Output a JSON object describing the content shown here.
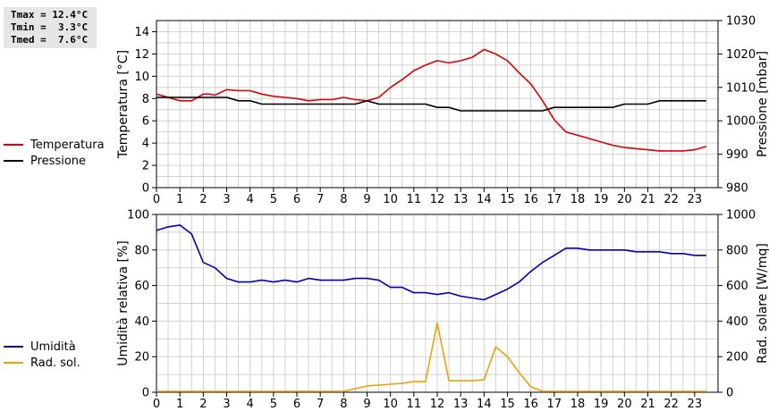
{
  "stats": {
    "tmax": "Tmax = 12.4°C",
    "tmin": "Tmin =  3.3°C",
    "tmed": "Tmed =  7.6°C"
  },
  "colors": {
    "temperature": "#dd0000",
    "pressure": "#000000",
    "humidity": "#0000bb",
    "radiation": "#f0a000",
    "grid": "#d0d0d0"
  },
  "chart_data": [
    {
      "type": "line",
      "xlim": [
        0,
        24
      ],
      "xticks": [
        0,
        1,
        2,
        3,
        4,
        5,
        6,
        7,
        8,
        9,
        10,
        11,
        12,
        13,
        14,
        15,
        16,
        17,
        18,
        19,
        20,
        21,
        22,
        23
      ],
      "ylabel": "Temperatura [°C]",
      "ylim": [
        0,
        15
      ],
      "yticks": [
        0,
        2,
        4,
        6,
        8,
        10,
        12,
        14
      ],
      "y2label": "Pressione [mbar]",
      "y2lim": [
        980,
        1030
      ],
      "y2ticks": [
        980,
        990,
        1000,
        1010,
        1020,
        1030
      ],
      "legend": [
        "Temperatura",
        "Pressione"
      ],
      "series": [
        {
          "name": "Temperatura",
          "axis": "left",
          "x": [
            0,
            0.5,
            1,
            1.5,
            2,
            2.25,
            2.5,
            3,
            3.5,
            4,
            4.5,
            5,
            5.5,
            6,
            6.5,
            7,
            7.5,
            8,
            8.5,
            9,
            9.5,
            10,
            10.5,
            11,
            11.5,
            12,
            12.5,
            13,
            13.5,
            14,
            14.5,
            15,
            15.5,
            16,
            16.5,
            17,
            17.5,
            18,
            18.5,
            19,
            19.5,
            20,
            20.5,
            21,
            21.5,
            22,
            22.5,
            23,
            23.5
          ],
          "y": [
            8.4,
            8.1,
            7.8,
            7.8,
            8.4,
            8.4,
            8.3,
            8.8,
            8.7,
            8.7,
            8.4,
            8.2,
            8.1,
            8.0,
            7.8,
            7.9,
            7.9,
            8.1,
            7.9,
            7.8,
            8.1,
            9.0,
            9.7,
            10.5,
            11.0,
            11.4,
            11.2,
            11.4,
            11.7,
            12.4,
            12.0,
            11.4,
            10.3,
            9.3,
            7.8,
            6.1,
            5.0,
            4.7,
            4.4,
            4.1,
            3.8,
            3.6,
            3.5,
            3.4,
            3.3,
            3.3,
            3.3,
            3.4,
            3.7
          ]
        },
        {
          "name": "Pressione",
          "axis": "right",
          "x": [
            0,
            1,
            2,
            3,
            3.5,
            4,
            4.5,
            5,
            6,
            7,
            8,
            8.5,
            9,
            9.5,
            10,
            11,
            11.5,
            12,
            12.5,
            13,
            14,
            15,
            16,
            16.5,
            17,
            17.5,
            18,
            19,
            19.5,
            20,
            21,
            21.5,
            22,
            23,
            23.5
          ],
          "y": [
            1007,
            1007,
            1007,
            1007,
            1006,
            1006,
            1005,
            1005,
            1005,
            1005,
            1005,
            1005,
            1006,
            1005,
            1005,
            1005,
            1005,
            1004,
            1004,
            1003,
            1003,
            1003,
            1003,
            1003,
            1004,
            1004,
            1004,
            1004,
            1004,
            1005,
            1005,
            1006,
            1006,
            1006,
            1006
          ]
        }
      ]
    },
    {
      "type": "line",
      "xlim": [
        0,
        24
      ],
      "xticks": [
        0,
        1,
        2,
        3,
        4,
        5,
        6,
        7,
        8,
        9,
        10,
        11,
        12,
        13,
        14,
        15,
        16,
        17,
        18,
        19,
        20,
        21,
        22,
        23
      ],
      "ylabel": "Umidità relativa [%]",
      "ylim": [
        0,
        100
      ],
      "yticks": [
        0,
        20,
        40,
        60,
        80,
        100
      ],
      "y2label": "Rad. solare [W/mq]",
      "y2lim": [
        0,
        1000
      ],
      "y2ticks": [
        0,
        200,
        400,
        600,
        800,
        1000
      ],
      "legend": [
        "Umidità",
        "Rad. sol."
      ],
      "series": [
        {
          "name": "Umidità",
          "axis": "left",
          "x": [
            0,
            0.5,
            1,
            1.5,
            2,
            2.5,
            3,
            3.5,
            4,
            4.5,
            5,
            5.5,
            6,
            6.5,
            7,
            7.5,
            8,
            8.5,
            9,
            9.5,
            10,
            10.5,
            11,
            11.5,
            12,
            12.5,
            13,
            13.5,
            14,
            14.5,
            15,
            15.5,
            16,
            16.5,
            17,
            17.5,
            18,
            18.5,
            19,
            19.5,
            20,
            20.5,
            21,
            21.5,
            22,
            22.5,
            23,
            23.5
          ],
          "y": [
            91,
            93,
            94,
            89,
            73,
            70,
            64,
            62,
            62,
            63,
            62,
            63,
            62,
            64,
            63,
            63,
            63,
            64,
            64,
            63,
            59,
            59,
            56,
            56,
            55,
            56,
            54,
            53,
            52,
            55,
            58,
            62,
            68,
            73,
            77,
            81,
            81,
            80,
            80,
            80,
            80,
            79,
            79,
            79,
            78,
            78,
            77,
            77
          ]
        },
        {
          "name": "Rad. sol.",
          "axis": "right",
          "x": [
            0,
            1,
            2,
            3,
            4,
            5,
            6,
            7,
            8,
            8.5,
            9,
            9.5,
            10,
            10.5,
            11,
            11.5,
            12,
            12.5,
            13,
            13.5,
            14,
            14.5,
            15,
            15.5,
            16,
            16.5,
            17,
            18,
            19,
            20,
            21,
            22,
            23,
            23.5
          ],
          "y": [
            5,
            5,
            5,
            5,
            5,
            5,
            5,
            5,
            5,
            20,
            35,
            40,
            45,
            50,
            60,
            60,
            390,
            65,
            65,
            65,
            70,
            255,
            200,
            110,
            30,
            5,
            5,
            5,
            5,
            5,
            5,
            5,
            5,
            5
          ]
        }
      ]
    }
  ]
}
